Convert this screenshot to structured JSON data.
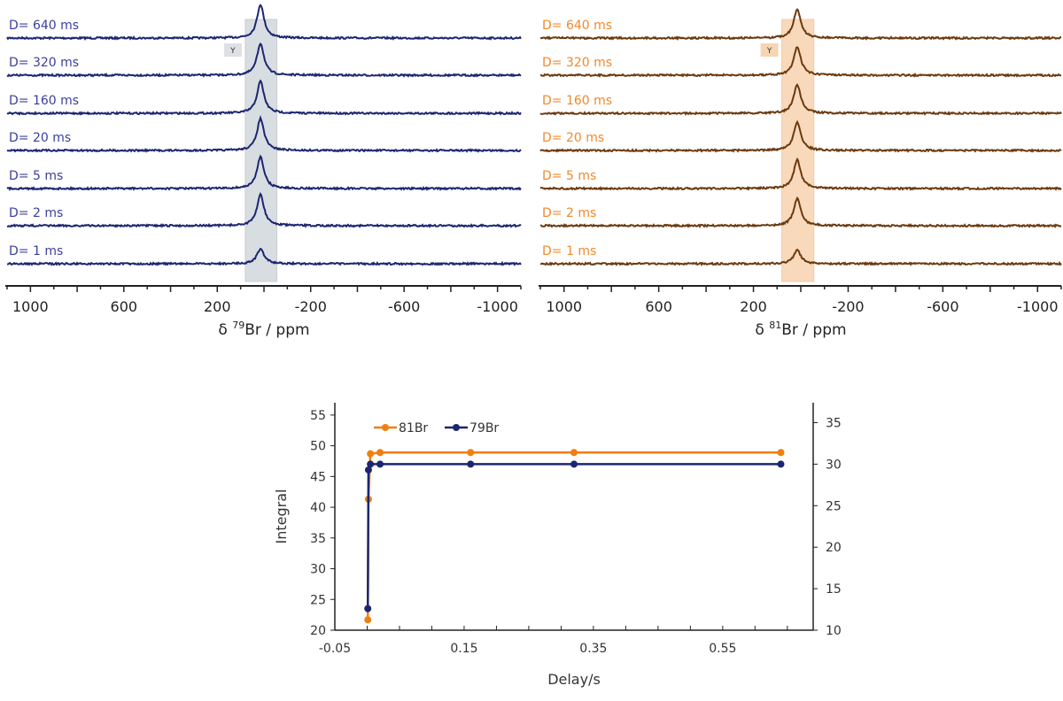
{
  "chart_data": [
    {
      "type": "line",
      "panel": "spectra-79Br",
      "xlabel_prefix": "δ ",
      "xlabel_sup": "79",
      "xlabel_rest": "Br / ppm",
      "xlim": [
        1100,
        -1100
      ],
      "xticks": [
        "1000",
        "600",
        "200",
        "-200",
        "-600",
        "-1000"
      ],
      "xtick_values": [
        1000,
        600,
        200,
        -200,
        -600,
        -1000
      ],
      "peak_ppm": 15,
      "region_label": "Y",
      "region_ppm": [
        80,
        -55
      ],
      "series": [
        {
          "name": "D= 640 ms",
          "rel_height": 1.0
        },
        {
          "name": "D= 320 ms",
          "rel_height": 0.95
        },
        {
          "name": "D= 160 ms",
          "rel_height": 0.95
        },
        {
          "name": "D= 20 ms",
          "rel_height": 0.95
        },
        {
          "name": "D= 5 ms",
          "rel_height": 0.95
        },
        {
          "name": "D= 2 ms",
          "rel_height": 0.93
        },
        {
          "name": "D= 1 ms",
          "rel_height": 0.45
        }
      ],
      "line_color": "#1c2670",
      "label_color": "#3a3f9e",
      "band_color": "#c7ced4"
    },
    {
      "type": "line",
      "panel": "spectra-81Br",
      "xlabel_prefix": "δ ",
      "xlabel_sup": "81",
      "xlabel_rest": "Br / ppm",
      "xlim": [
        1100,
        -1100
      ],
      "xticks": [
        "1000",
        "600",
        "200",
        "-200",
        "-600",
        "-1000"
      ],
      "xtick_values": [
        1000,
        600,
        200,
        -200,
        -600,
        -1000
      ],
      "peak_ppm": 15,
      "region_label": "Y",
      "region_ppm": [
        80,
        -55
      ],
      "series": [
        {
          "name": "D= 640 ms",
          "rel_height": 0.85
        },
        {
          "name": "D= 320 ms",
          "rel_height": 0.85
        },
        {
          "name": "D= 160 ms",
          "rel_height": 0.85
        },
        {
          "name": "D= 20 ms",
          "rel_height": 0.85
        },
        {
          "name": "D= 5 ms",
          "rel_height": 0.85
        },
        {
          "name": "D= 2 ms",
          "rel_height": 0.8
        },
        {
          "name": "D= 1 ms",
          "rel_height": 0.4
        }
      ],
      "line_color": "#6b3a10",
      "label_color": "#ef8a2c",
      "band_color": "#f7c9a0"
    },
    {
      "type": "line",
      "panel": "integral-vs-delay",
      "xlabel": "Delay/s",
      "ylabel": "Integral",
      "xlim": [
        -0.05,
        0.69
      ],
      "xticks": [
        "-0.05",
        "0.15",
        "0.35",
        "0.55"
      ],
      "xtick_values": [
        -0.05,
        0.15,
        0.35,
        0.55
      ],
      "ylim_left": [
        20,
        57
      ],
      "yticks_left": [
        "20",
        "25",
        "30",
        "35",
        "40",
        "45",
        "50",
        "55"
      ],
      "ylim_right": [
        10,
        37.4
      ],
      "yticks_right": [
        "10",
        "15",
        "20",
        "25",
        "30",
        "35"
      ],
      "legend": "top-left",
      "x": [
        0.001,
        0.002,
        0.005,
        0.02,
        0.16,
        0.32,
        0.64
      ],
      "series": [
        {
          "name": "81Br",
          "axis": "left",
          "color": "#f07f0e",
          "values": [
            21.7,
            41.3,
            48.7,
            48.9,
            48.9,
            48.9,
            48.9
          ]
        },
        {
          "name": "79Br",
          "axis": "right",
          "color": "#1c2670",
          "values": [
            12.6,
            29.3,
            30.0,
            30.0,
            30.0,
            30.0,
            30.0
          ]
        }
      ]
    }
  ]
}
